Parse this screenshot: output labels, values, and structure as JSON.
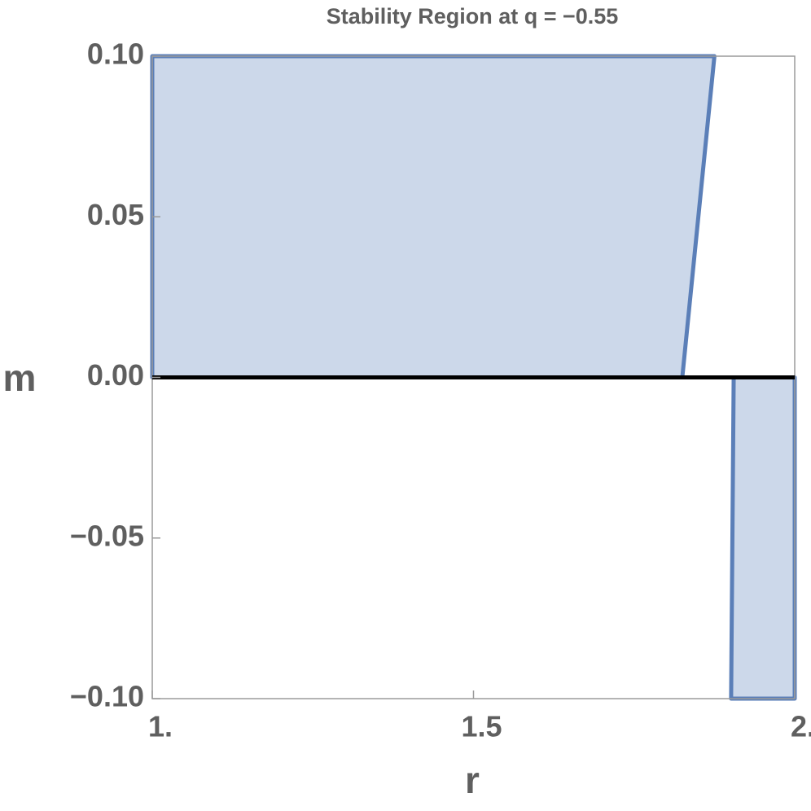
{
  "chart_data": {
    "type": "region",
    "title": "Stability Region at q = −0.55",
    "x_label": "r",
    "y_label": "m",
    "xlim": [
      1.0,
      2.0
    ],
    "ylim": [
      -0.1,
      0.1
    ],
    "xticks": [
      {
        "value": 1.0,
        "label": "1."
      },
      1.5,
      {
        "value": 2.0,
        "label": "2."
      }
    ],
    "yticks": [
      {
        "value": -0.1,
        "label": "−0.10"
      },
      {
        "value": -0.05,
        "label": "−0.05"
      },
      {
        "value": 0,
        "label": "0.00"
      },
      {
        "value": 0.05,
        "label": "0.05"
      },
      {
        "value": 0.1,
        "label": "0.10"
      }
    ],
    "fill_color": "#ccd8ea",
    "edge_color": "#5b7fb8",
    "regions": [
      {
        "x": [
          1.0,
          1.0,
          1.875,
          1.825
        ],
        "y": [
          0,
          0.1,
          0.1,
          0
        ]
      },
      {
        "x": [
          1.901,
          1.905,
          2.0,
          2.0
        ],
        "y": [
          -0.1,
          0,
          0,
          -0.1
        ]
      }
    ]
  }
}
